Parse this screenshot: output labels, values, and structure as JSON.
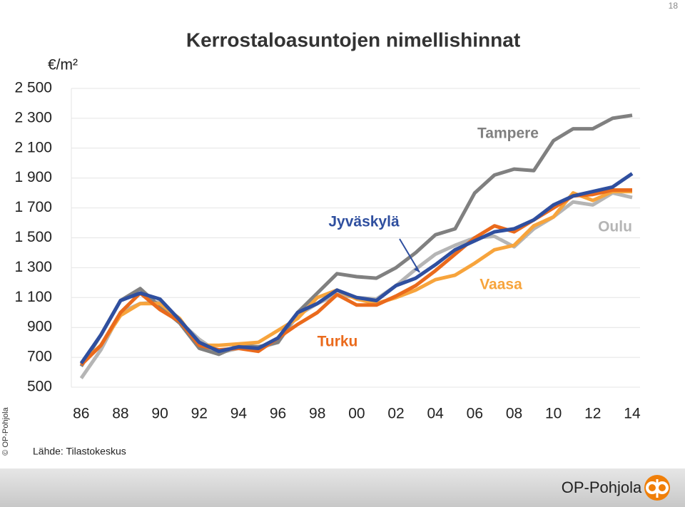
{
  "page_number": "18",
  "copyright": "© OP-Pohjola",
  "source": "Lähde: Tilastokeskus",
  "brand": "OP-Pohjola",
  "chart_data": {
    "type": "line",
    "title": "Kerrostaloasuntojen nimellishinnat",
    "y_label": "€/m²",
    "x": [
      1986,
      1987,
      1988,
      1989,
      1990,
      1991,
      1992,
      1993,
      1994,
      1995,
      1996,
      1997,
      1998,
      1999,
      2000,
      2001,
      2002,
      2003,
      2004,
      2005,
      2006,
      2007,
      2008,
      2009,
      2010,
      2011,
      2012,
      2013,
      2014
    ],
    "xlim": [
      1985.5,
      2014.4
    ],
    "xticks": [
      {
        "value": 1986,
        "label": "86"
      },
      {
        "value": 1988,
        "label": "88"
      },
      {
        "value": 1990,
        "label": "90"
      },
      {
        "value": 1992,
        "label": "92"
      },
      {
        "value": 1994,
        "label": "94"
      },
      {
        "value": 1996,
        "label": "96"
      },
      {
        "value": 1998,
        "label": "98"
      },
      {
        "value": 2000,
        "label": "00"
      },
      {
        "value": 2002,
        "label": "02"
      },
      {
        "value": 2004,
        "label": "04"
      },
      {
        "value": 2006,
        "label": "06"
      },
      {
        "value": 2008,
        "label": "08"
      },
      {
        "value": 2010,
        "label": "10"
      },
      {
        "value": 2012,
        "label": "12"
      },
      {
        "value": 2014,
        "label": "14"
      }
    ],
    "ylim": [
      500,
      2500
    ],
    "yticks": [
      500,
      700,
      900,
      {
        "value": 1100,
        "label": "1 100"
      },
      {
        "value": 1300,
        "label": "1 300"
      },
      {
        "value": 1500,
        "label": "1 500"
      },
      {
        "value": 1700,
        "label": "1 700"
      },
      {
        "value": 1900,
        "label": "1 900"
      },
      {
        "value": 2100,
        "label": "2 100"
      },
      {
        "value": 2300,
        "label": "2 300"
      },
      {
        "value": 2500,
        "label": "2 500"
      }
    ],
    "grid": true,
    "series": [
      {
        "name": "Tampere",
        "color": "#808080",
        "values": [
          640,
          850,
          1080,
          1160,
          1040,
          930,
          760,
          720,
          780,
          770,
          800,
          1000,
          1130,
          1260,
          1240,
          1230,
          1300,
          1400,
          1520,
          1560,
          1800,
          1920,
          1960,
          1950,
          2150,
          2230,
          2230,
          2300,
          2320
        ]
      },
      {
        "name": "Jyväskylä",
        "color": "#2f4f9f",
        "values": [
          660,
          850,
          1080,
          1130,
          1090,
          950,
          800,
          740,
          770,
          760,
          830,
          1000,
          1060,
          1150,
          1100,
          1080,
          1180,
          1230,
          1320,
          1420,
          1480,
          1540,
          1560,
          1620,
          1720,
          1780,
          1810,
          1840,
          1930
        ]
      },
      {
        "name": "Turku",
        "color": "#ea6a1c",
        "values": [
          650,
          780,
          1000,
          1130,
          1020,
          940,
          780,
          750,
          760,
          740,
          830,
          920,
          1000,
          1120,
          1050,
          1050,
          1110,
          1180,
          1280,
          1390,
          1500,
          1580,
          1540,
          1620,
          1700,
          1780,
          1790,
          1820,
          1820
        ]
      },
      {
        "name": "Vaasa",
        "color": "#f7a43c",
        "values": [
          660,
          780,
          980,
          1060,
          1060,
          960,
          780,
          780,
          790,
          800,
          880,
          960,
          1100,
          1150,
          1090,
          1060,
          1100,
          1150,
          1220,
          1250,
          1330,
          1420,
          1450,
          1580,
          1640,
          1800,
          1750,
          1810,
          1810
        ]
      },
      {
        "name": "Oulu",
        "color": "#b5b5b5",
        "values": [
          560,
          750,
          1000,
          1060,
          1070,
          940,
          820,
          730,
          760,
          760,
          800,
          980,
          1060,
          1120,
          1100,
          1090,
          1180,
          1290,
          1390,
          1450,
          1500,
          1510,
          1440,
          1560,
          1640,
          1740,
          1720,
          1800,
          1770
        ]
      }
    ]
  }
}
